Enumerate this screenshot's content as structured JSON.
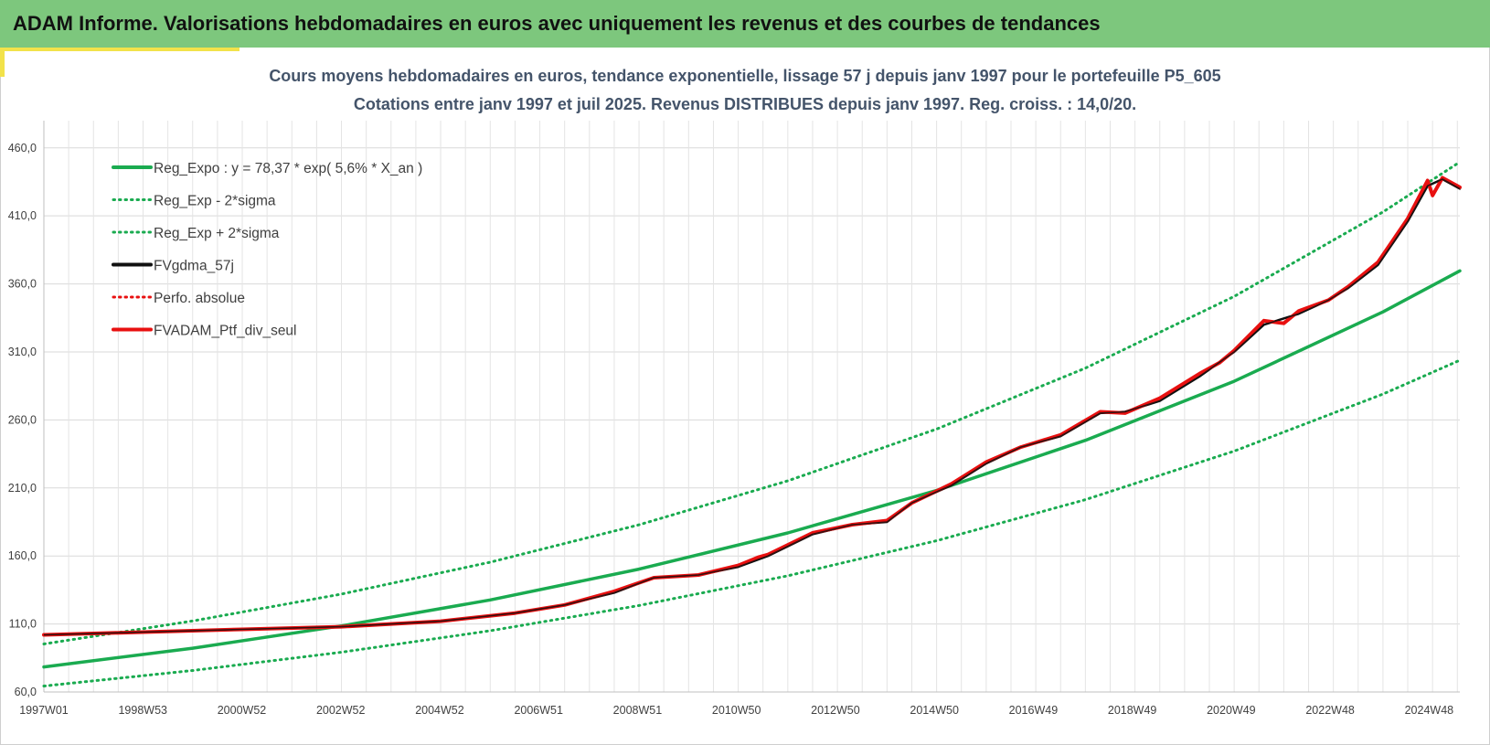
{
  "header": {
    "title": "ADAM Informe. Valorisations hebdomadaires en euros avec uniquement les revenus et des courbes de tendances"
  },
  "colors": {
    "header_bg": "#7dc77d",
    "accent": "#f2e24a",
    "trend": "#1aab50",
    "fv": "#111111",
    "portfolio": "#e81010"
  },
  "chart_data": {
    "type": "line",
    "title": "Cours moyens hebdomadaires  en euros, tendance exponentielle, lissage 57 j depuis janv 1997 pour le portefeuille P5_605",
    "subtitle": "Cotations entre janv 1997 et juil 2025. Revenus DISTRIBUES depuis janv 1997. Reg. croiss. : 14,0/20.",
    "x_ticks": [
      "1997W01",
      "1998W53",
      "2000W52",
      "2002W52",
      "2004W52",
      "2006W51",
      "2008W51",
      "2010W50",
      "2012W50",
      "2014W50",
      "2016W49",
      "2018W49",
      "2020W49",
      "2022W48",
      "2024W48"
    ],
    "x_range_years": [
      1997.0,
      2025.55
    ],
    "y_ticks": [
      "60,0",
      "110,0",
      "160,0",
      "210,0",
      "260,0",
      "310,0",
      "360,0",
      "410,0",
      "460,0"
    ],
    "ylim": [
      60,
      480
    ],
    "grid": true,
    "legend_position": "top-left",
    "series": [
      {
        "name": "Reg_Expo : y = 78,37 * exp( 5,6% *  X_an )",
        "style": "solid-green",
        "x": [
          1997.0,
          2000.0,
          2003.0,
          2006.0,
          2009.0,
          2012.0,
          2015.0,
          2018.0,
          2021.0,
          2024.0,
          2025.55
        ],
        "y": [
          78.4,
          92.2,
          108.6,
          127.7,
          150.3,
          176.9,
          208.2,
          245.0,
          288.4,
          339.4,
          369.6
        ]
      },
      {
        "name": "Reg_Exp - 2*sigma",
        "style": "dotted-green",
        "x": [
          1997.0,
          2000.0,
          2003.0,
          2006.0,
          2009.0,
          2012.0,
          2015.0,
          2018.0,
          2021.0,
          2024.0,
          2025.55
        ],
        "y": [
          64.4,
          75.8,
          89.2,
          105.0,
          123.6,
          145.4,
          171.2,
          201.4,
          237.1,
          279.0,
          303.9
        ]
      },
      {
        "name": "Reg_Exp + 2*sigma",
        "style": "dotted-green",
        "x": [
          1997.0,
          2000.0,
          2003.0,
          2006.0,
          2009.0,
          2012.0,
          2015.0,
          2018.0,
          2021.0,
          2024.0,
          2025.55
        ],
        "y": [
          95.3,
          112.2,
          132.0,
          155.4,
          182.9,
          215.2,
          253.3,
          298.1,
          350.8,
          412.9,
          449.6
        ]
      },
      {
        "name": "FVgdma_57j",
        "style": "solid-black",
        "x": [
          1997.0,
          1999.0,
          2001.0,
          2003.0,
          2005.0,
          2006.5,
          2007.5,
          2008.5,
          2009.3,
          2010.2,
          2011.0,
          2011.6,
          2012.5,
          2013.3,
          2014.0,
          2014.5,
          2015.3,
          2016.0,
          2016.7,
          2017.5,
          2018.3,
          2018.8,
          2019.5,
          2020.3,
          2021.0,
          2021.6,
          2022.3,
          2022.9,
          2023.3,
          2023.9,
          2024.5,
          2024.9,
          2025.2,
          2025.55
        ],
        "y": [
          102,
          104,
          106,
          108,
          112,
          118,
          124,
          133,
          144,
          146,
          152,
          160,
          176,
          183,
          185,
          199,
          212,
          228,
          240,
          248,
          265,
          266,
          274,
          292,
          310,
          330,
          338,
          348,
          357,
          374,
          406,
          432,
          437,
          430
        ]
      },
      {
        "name": "Perfo. absolue",
        "style": "dotted-red",
        "x": [
          1997.0,
          1999.0,
          2001.0,
          2003.0,
          2005.0,
          2006.5,
          2007.5,
          2008.5,
          2009.3,
          2010.2,
          2011.0,
          2011.6,
          2012.5,
          2013.3,
          2014.0,
          2014.5,
          2015.3,
          2016.0,
          2016.7,
          2017.5,
          2018.3,
          2018.8,
          2019.5,
          2020.3,
          2021.0,
          2021.6,
          2022.3,
          2022.9,
          2023.3,
          2023.9,
          2024.5,
          2024.9,
          2025.2,
          2025.55
        ],
        "y": [
          102,
          104,
          106,
          108,
          112,
          118,
          124,
          133,
          144,
          146,
          152,
          160,
          176,
          183,
          185,
          199,
          212,
          228,
          240,
          248,
          265,
          266,
          274,
          292,
          310,
          330,
          338,
          348,
          357,
          374,
          406,
          432,
          437,
          430
        ]
      },
      {
        "name": "FVADAM_Ptf_div_seul",
        "style": "solid-red",
        "x": [
          1997.0,
          1999.0,
          2001.0,
          2003.0,
          2005.0,
          2006.5,
          2007.5,
          2008.5,
          2009.3,
          2010.2,
          2011.0,
          2011.4,
          2011.6,
          2012.5,
          2013.3,
          2014.0,
          2014.5,
          2015.3,
          2016.0,
          2016.7,
          2017.5,
          2018.3,
          2018.8,
          2019.5,
          2020.3,
          2020.7,
          2021.0,
          2021.6,
          2022.0,
          2022.3,
          2022.9,
          2023.3,
          2023.9,
          2024.5,
          2024.9,
          2025.0,
          2025.2,
          2025.55
        ],
        "y": [
          102,
          104,
          106,
          108,
          112,
          118,
          124,
          134,
          144,
          146,
          153,
          159,
          161,
          177,
          183,
          186,
          199,
          213,
          229,
          240,
          249,
          266,
          265,
          276,
          294,
          302,
          311,
          333,
          331,
          340,
          348,
          358,
          376,
          408,
          436,
          425,
          438,
          431
        ]
      }
    ]
  }
}
